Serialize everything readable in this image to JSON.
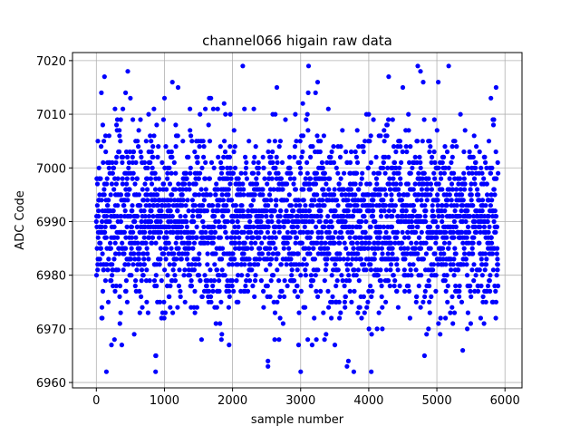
{
  "chart_data": {
    "type": "scatter",
    "title": "channel066 higain raw data",
    "xlabel": "sample number",
    "ylabel": "ADC Code",
    "xlim": [
      -350,
      6250
    ],
    "ylim": [
      6959,
      7021.5
    ],
    "xticks": [
      0,
      1000,
      2000,
      3000,
      4000,
      5000,
      6000
    ],
    "yticks": [
      6960,
      6970,
      6980,
      6990,
      7000,
      7010,
      7020
    ],
    "grid": true,
    "marker_color": "#0000ff",
    "series": [
      {
        "x_range": [
          0,
          5900
        ],
        "n_points": 5900,
        "ymin": 6962,
        "ymax": 7019,
        "y_center": 6990,
        "y_spread_dense": [
          6974,
          7007
        ],
        "x": [
          120,
          430,
          2150,
          3000,
          3780,
          4720,
          4760,
          4800,
          5870,
          500,
          1200,
          3250,
          4500,
          4000,
          1000,
          870,
          1950,
          5380,
          2520,
          3350,
          870,
          2520,
          2970,
          3680,
          3700,
          4200
        ],
        "y": [
          7017,
          7014,
          7019,
          6962,
          6962,
          7019,
          7018,
          7016,
          7015,
          7013,
          7015,
          7016,
          7015,
          7010,
          7013,
          6965,
          6967,
          6966,
          6963,
          6968,
          6962,
          6964,
          6967,
          6963,
          6964,
          6970
        ]
      }
    ]
  }
}
